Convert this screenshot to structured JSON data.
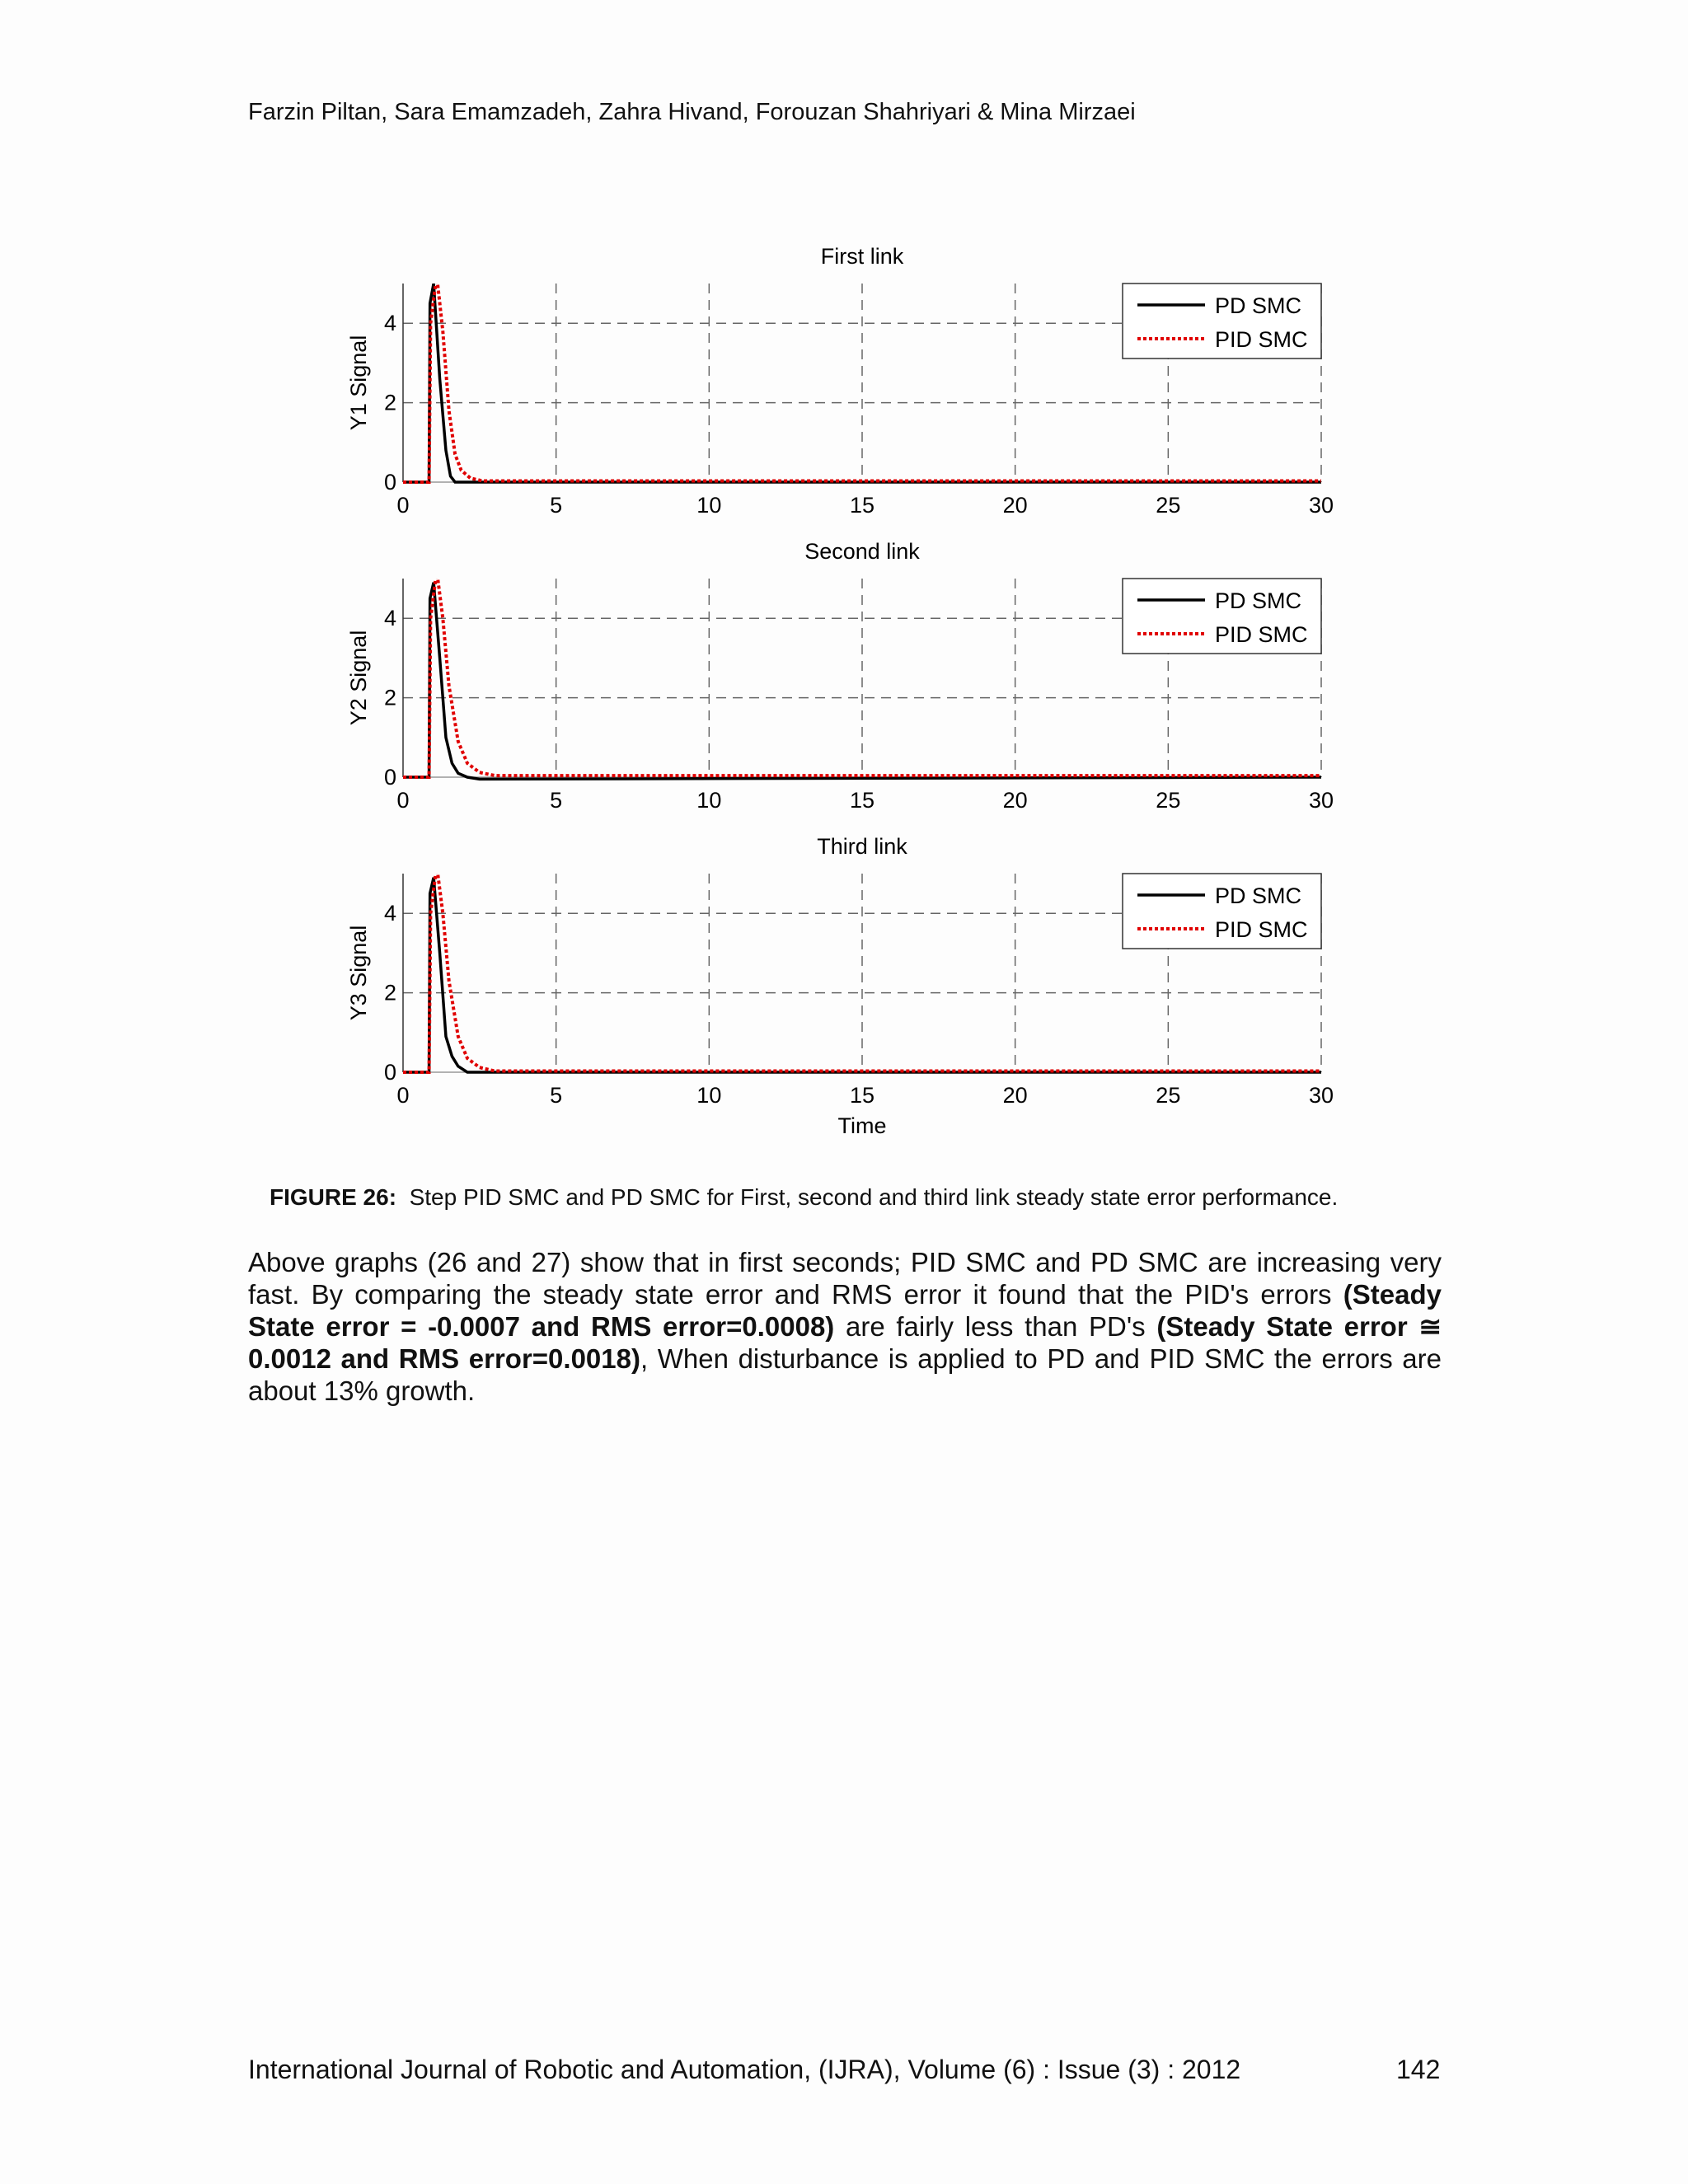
{
  "header": {
    "authors": "Farzin Piltan, Sara Emamzadeh, Zahra Hivand, Forouzan Shahriyari & Mina Mirzaei"
  },
  "chart_data": [
    {
      "type": "line",
      "title": "First link",
      "xlabel": "",
      "ylabel": "Y1 Signal",
      "xlim": [
        0,
        30
      ],
      "ylim": [
        0,
        5
      ],
      "xticks": [
        "0",
        "5",
        "10",
        "15",
        "20",
        "25",
        "30"
      ],
      "yticks": [
        "0",
        "2",
        "4"
      ],
      "grid": true,
      "legend": "top-right",
      "series": [
        {
          "name": "PD SMC",
          "color": "#000000",
          "style": "solid",
          "x": [
            0,
            0.85,
            0.88,
            1.0,
            1.2,
            1.4,
            1.55,
            1.7,
            1.9,
            30
          ],
          "y": [
            0,
            0,
            4.5,
            5.0,
            2.6,
            0.8,
            0.15,
            0,
            0,
            0
          ]
        },
        {
          "name": "PID SMC",
          "color": "#e00000",
          "style": "dotted",
          "x": [
            0,
            0.85,
            0.9,
            1.1,
            1.3,
            1.5,
            1.7,
            1.9,
            2.2,
            2.6,
            30
          ],
          "y": [
            0,
            0,
            4.0,
            5.2,
            3.8,
            1.8,
            0.7,
            0.3,
            0.1,
            0.03,
            0.03
          ]
        }
      ]
    },
    {
      "type": "line",
      "title": "Second link",
      "xlabel": "",
      "ylabel": "Y2 Signal",
      "xlim": [
        0,
        30
      ],
      "ylim": [
        0,
        5
      ],
      "xticks": [
        "0",
        "5",
        "10",
        "15",
        "20",
        "25",
        "30"
      ],
      "yticks": [
        "0",
        "2",
        "4"
      ],
      "grid": true,
      "legend": "top-right",
      "series": [
        {
          "name": "PD SMC",
          "color": "#000000",
          "style": "solid",
          "x": [
            0,
            0.85,
            0.88,
            1.0,
            1.2,
            1.4,
            1.6,
            1.8,
            2.1,
            2.5,
            30
          ],
          "y": [
            0,
            0,
            4.5,
            4.9,
            3.0,
            1.0,
            0.35,
            0.1,
            0,
            -0.05,
            0
          ]
        },
        {
          "name": "PID SMC",
          "color": "#e00000",
          "style": "dotted",
          "x": [
            0,
            0.85,
            0.9,
            1.1,
            1.3,
            1.5,
            1.8,
            2.1,
            2.5,
            3.0,
            30
          ],
          "y": [
            0,
            0,
            4.0,
            5.2,
            4.0,
            2.3,
            0.9,
            0.35,
            0.12,
            0.04,
            0.04
          ]
        }
      ]
    },
    {
      "type": "line",
      "title": "Third link",
      "xlabel": "Time",
      "ylabel": "Y3 Signal",
      "xlim": [
        0,
        30
      ],
      "ylim": [
        0,
        5
      ],
      "xticks": [
        "0",
        "5",
        "10",
        "15",
        "20",
        "25",
        "30"
      ],
      "yticks": [
        "0",
        "2",
        "4"
      ],
      "grid": true,
      "legend": "top-right",
      "series": [
        {
          "name": "PD SMC",
          "color": "#000000",
          "style": "solid",
          "x": [
            0,
            0.85,
            0.88,
            1.0,
            1.2,
            1.4,
            1.6,
            1.8,
            2.1,
            2.8,
            30
          ],
          "y": [
            0,
            0,
            4.5,
            4.9,
            3.0,
            0.9,
            0.4,
            0.15,
            0,
            0,
            0
          ]
        },
        {
          "name": "PID SMC",
          "color": "#e00000",
          "style": "dotted",
          "x": [
            0,
            0.85,
            0.9,
            1.1,
            1.3,
            1.5,
            1.8,
            2.1,
            2.5,
            3.0,
            30
          ],
          "y": [
            0,
            0,
            4.0,
            5.2,
            4.0,
            2.3,
            0.9,
            0.35,
            0.12,
            0.03,
            0.03
          ]
        }
      ]
    }
  ],
  "caption": {
    "label": "FIGURE 26:",
    "text": "Step PID SMC and PD SMC for First, second and third link steady state error performance."
  },
  "paragraph": {
    "p1": "Above graphs (26 and 27) show that in first seconds; PID SMC and PD SMC are increasing very fast. By comparing the steady state error and RMS error it found that the PID's errors ",
    "b1": "(Steady State error = -0.0007 and RMS error=0.0008)",
    "p2": " are fairly less than PD's ",
    "b2": "(Steady State error ≅ 0.0012 and RMS error=0.0018)",
    "p3": ", When disturbance is applied to PD and PID SMC the errors are about 13% growth."
  },
  "footer": {
    "journal": "International Journal of Robotic and Automation, (IJRA), Volume (6) : Issue (3) : 2012",
    "page": "142"
  }
}
